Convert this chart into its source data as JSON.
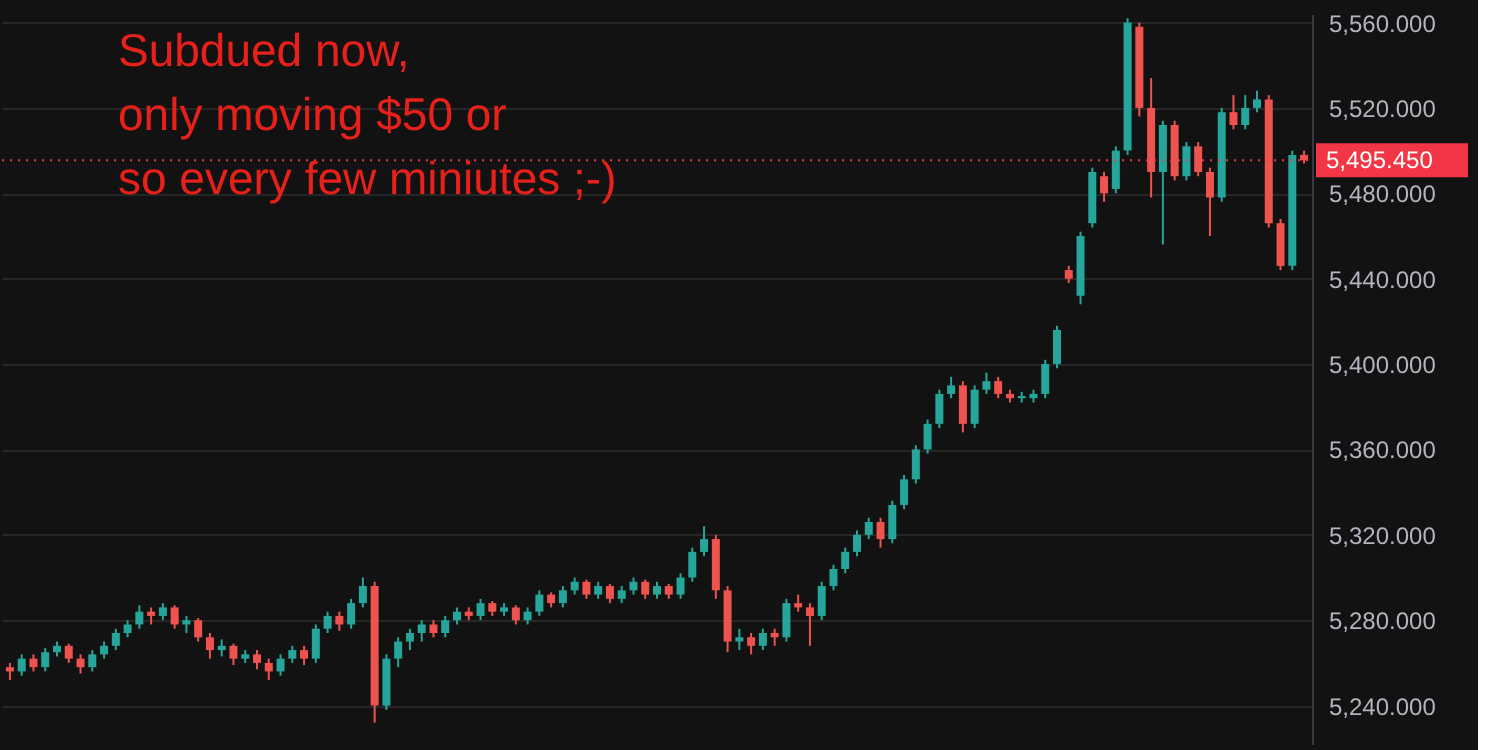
{
  "chart_data": {
    "type": "candlestick",
    "annotations": [
      "Subdued now,\nonly moving $50 or\nso every few miniutes ;-)"
    ],
    "categories": [
      null,
      null,
      null,
      null,
      null,
      null,
      null,
      null,
      null,
      null,
      null,
      null,
      null,
      null,
      null,
      null,
      null,
      null,
      null,
      null,
      null,
      null,
      null,
      null,
      null,
      null,
      null,
      null,
      null,
      null,
      null,
      null,
      null,
      null,
      null,
      null,
      null,
      null,
      null,
      null,
      null,
      null,
      null,
      null,
      null,
      null,
      null,
      null,
      null,
      null,
      null,
      null,
      null,
      null,
      null,
      null,
      null,
      null,
      null,
      null,
      null,
      null,
      null,
      null,
      null,
      null,
      null,
      null,
      null,
      null,
      null,
      null,
      null,
      null,
      null,
      null,
      null,
      null,
      null,
      null,
      null,
      null,
      null,
      null,
      null,
      null,
      null,
      null,
      null,
      null,
      null,
      null,
      null,
      null,
      null,
      null,
      null,
      null,
      null,
      null,
      null,
      null,
      null,
      null,
      null,
      null,
      null,
      null,
      null,
      null,
      null
    ],
    "ohlc": [
      [
        5258,
        5260,
        5252,
        5256
      ],
      [
        5256,
        5264,
        5254,
        5262
      ],
      [
        5262,
        5264,
        5256,
        5258
      ],
      [
        5258,
        5267,
        5256,
        5265
      ],
      [
        5265,
        5270,
        5263,
        5268
      ],
      [
        5268,
        5269,
        5260,
        5262
      ],
      [
        5262,
        5264,
        5255,
        5258
      ],
      [
        5258,
        5266,
        5256,
        5264
      ],
      [
        5264,
        5270,
        5262,
        5268
      ],
      [
        5268,
        5276,
        5266,
        5274
      ],
      [
        5274,
        5280,
        5272,
        5278
      ],
      [
        5278,
        5287,
        5276,
        5284
      ],
      [
        5284,
        5286,
        5278,
        5282
      ],
      [
        5282,
        5288,
        5280,
        5286
      ],
      [
        5286,
        5287,
        5276,
        5278
      ],
      [
        5278,
        5282,
        5274,
        5280
      ],
      [
        5280,
        5281,
        5270,
        5272
      ],
      [
        5272,
        5274,
        5262,
        5266
      ],
      [
        5266,
        5271,
        5263,
        5268
      ],
      [
        5268,
        5269,
        5259,
        5262
      ],
      [
        5262,
        5266,
        5260,
        5264
      ],
      [
        5264,
        5266,
        5257,
        5260
      ],
      [
        5260,
        5262,
        5252,
        5256
      ],
      [
        5256,
        5264,
        5254,
        5262
      ],
      [
        5262,
        5268,
        5260,
        5266
      ],
      [
        5266,
        5268,
        5259,
        5262
      ],
      [
        5262,
        5278,
        5260,
        5276
      ],
      [
        5276,
        5284,
        5274,
        5282
      ],
      [
        5282,
        5284,
        5275,
        5278
      ],
      [
        5278,
        5290,
        5276,
        5288
      ],
      [
        5288,
        5300,
        5286,
        5296
      ],
      [
        5296,
        5298,
        5232,
        5240
      ],
      [
        5240,
        5264,
        5238,
        5262
      ],
      [
        5262,
        5272,
        5258,
        5270
      ],
      [
        5270,
        5276,
        5266,
        5274
      ],
      [
        5274,
        5280,
        5270,
        5278
      ],
      [
        5278,
        5280,
        5272,
        5274
      ],
      [
        5274,
        5282,
        5272,
        5280
      ],
      [
        5280,
        5286,
        5278,
        5284
      ],
      [
        5284,
        5286,
        5280,
        5282
      ],
      [
        5282,
        5290,
        5280,
        5288
      ],
      [
        5288,
        5289,
        5282,
        5284
      ],
      [
        5284,
        5288,
        5282,
        5286
      ],
      [
        5286,
        5287,
        5278,
        5280
      ],
      [
        5280,
        5286,
        5278,
        5284
      ],
      [
        5284,
        5294,
        5282,
        5292
      ],
      [
        5292,
        5293,
        5286,
        5288
      ],
      [
        5288,
        5296,
        5286,
        5294
      ],
      [
        5294,
        5300,
        5292,
        5298
      ],
      [
        5298,
        5299,
        5290,
        5292
      ],
      [
        5292,
        5298,
        5290,
        5296
      ],
      [
        5296,
        5297,
        5288,
        5290
      ],
      [
        5290,
        5296,
        5288,
        5294
      ],
      [
        5294,
        5300,
        5292,
        5298
      ],
      [
        5298,
        5299,
        5290,
        5292
      ],
      [
        5292,
        5298,
        5290,
        5296
      ],
      [
        5296,
        5297,
        5290,
        5292
      ],
      [
        5292,
        5302,
        5290,
        5300
      ],
      [
        5300,
        5314,
        5298,
        5312
      ],
      [
        5312,
        5324,
        5310,
        5318
      ],
      [
        5318,
        5320,
        5290,
        5294
      ],
      [
        5294,
        5296,
        5265,
        5270
      ],
      [
        5270,
        5276,
        5266,
        5272
      ],
      [
        5272,
        5274,
        5264,
        5268
      ],
      [
        5268,
        5276,
        5266,
        5274
      ],
      [
        5274,
        5276,
        5268,
        5272
      ],
      [
        5272,
        5290,
        5270,
        5288
      ],
      [
        5288,
        5292,
        5284,
        5286
      ],
      [
        5286,
        5288,
        5268,
        5282
      ],
      [
        5282,
        5298,
        5280,
        5296
      ],
      [
        5296,
        5306,
        5294,
        5304
      ],
      [
        5304,
        5314,
        5302,
        5312
      ],
      [
        5312,
        5322,
        5310,
        5320
      ],
      [
        5320,
        5328,
        5318,
        5326
      ],
      [
        5326,
        5328,
        5314,
        5318
      ],
      [
        5318,
        5336,
        5316,
        5334
      ],
      [
        5334,
        5348,
        5332,
        5346
      ],
      [
        5346,
        5362,
        5344,
        5360
      ],
      [
        5360,
        5374,
        5358,
        5372
      ],
      [
        5372,
        5388,
        5370,
        5386
      ],
      [
        5386,
        5394,
        5384,
        5390
      ],
      [
        5390,
        5392,
        5368,
        5372
      ],
      [
        5372,
        5390,
        5370,
        5388
      ],
      [
        5388,
        5396,
        5386,
        5392
      ],
      [
        5392,
        5394,
        5384,
        5386
      ],
      [
        5386,
        5388,
        5382,
        5384
      ],
      [
        5384,
        5387,
        5382,
        5385
      ],
      [
        5384,
        5388,
        5382,
        5386
      ],
      [
        5386,
        5402,
        5384,
        5400
      ],
      [
        5400,
        5418,
        5398,
        5416
      ],
      [
        5444,
        5446,
        5438,
        5440
      ],
      [
        5432,
        5462,
        5428,
        5460
      ],
      [
        5466,
        5492,
        5464,
        5490
      ],
      [
        5488,
        5490,
        5476,
        5480
      ],
      [
        5482,
        5502,
        5480,
        5500
      ],
      [
        5500,
        5562,
        5498,
        5560
      ],
      [
        5558,
        5560,
        5516,
        5520
      ],
      [
        5520,
        5534,
        5478,
        5490
      ],
      [
        5490,
        5514,
        5456,
        5512
      ],
      [
        5512,
        5514,
        5486,
        5488
      ],
      [
        5488,
        5504,
        5486,
        5502
      ],
      [
        5502,
        5504,
        5488,
        5490
      ],
      [
        5490,
        5492,
        5460,
        5478
      ],
      [
        5478,
        5520,
        5476,
        5518
      ],
      [
        5518,
        5526,
        5510,
        5512
      ],
      [
        5512,
        5526,
        5510,
        5520
      ],
      [
        5520,
        5528,
        5518,
        5524
      ],
      [
        5524,
        5526,
        5464,
        5466
      ],
      [
        5466,
        5468,
        5444,
        5446
      ],
      [
        5446,
        5500,
        5444,
        5498
      ],
      [
        5498,
        5500,
        5494,
        5495.45
      ]
    ],
    "ylim": [
      5222,
      5564
    ],
    "yticks": [
      {
        "value": 5240,
        "label": "5,240.000"
      },
      {
        "value": 5280,
        "label": "5,280.000"
      },
      {
        "value": 5320,
        "label": "5,320.000"
      },
      {
        "value": 5360,
        "label": "5,360.000"
      },
      {
        "value": 5400,
        "label": "5,400.000"
      },
      {
        "value": 5440,
        "label": "5,440.000"
      },
      {
        "value": 5480,
        "label": "5,480.000"
      },
      {
        "value": 5520,
        "label": "5,520.000"
      },
      {
        "value": 5560,
        "label": "5,560.000"
      }
    ],
    "ref_lines": [
      {
        "axis": "y",
        "value": 5495.45,
        "label": "5,495.450",
        "color": "#f23645",
        "line_style": "dotted"
      }
    ],
    "grid": "y",
    "tick_labels": "y"
  }
}
